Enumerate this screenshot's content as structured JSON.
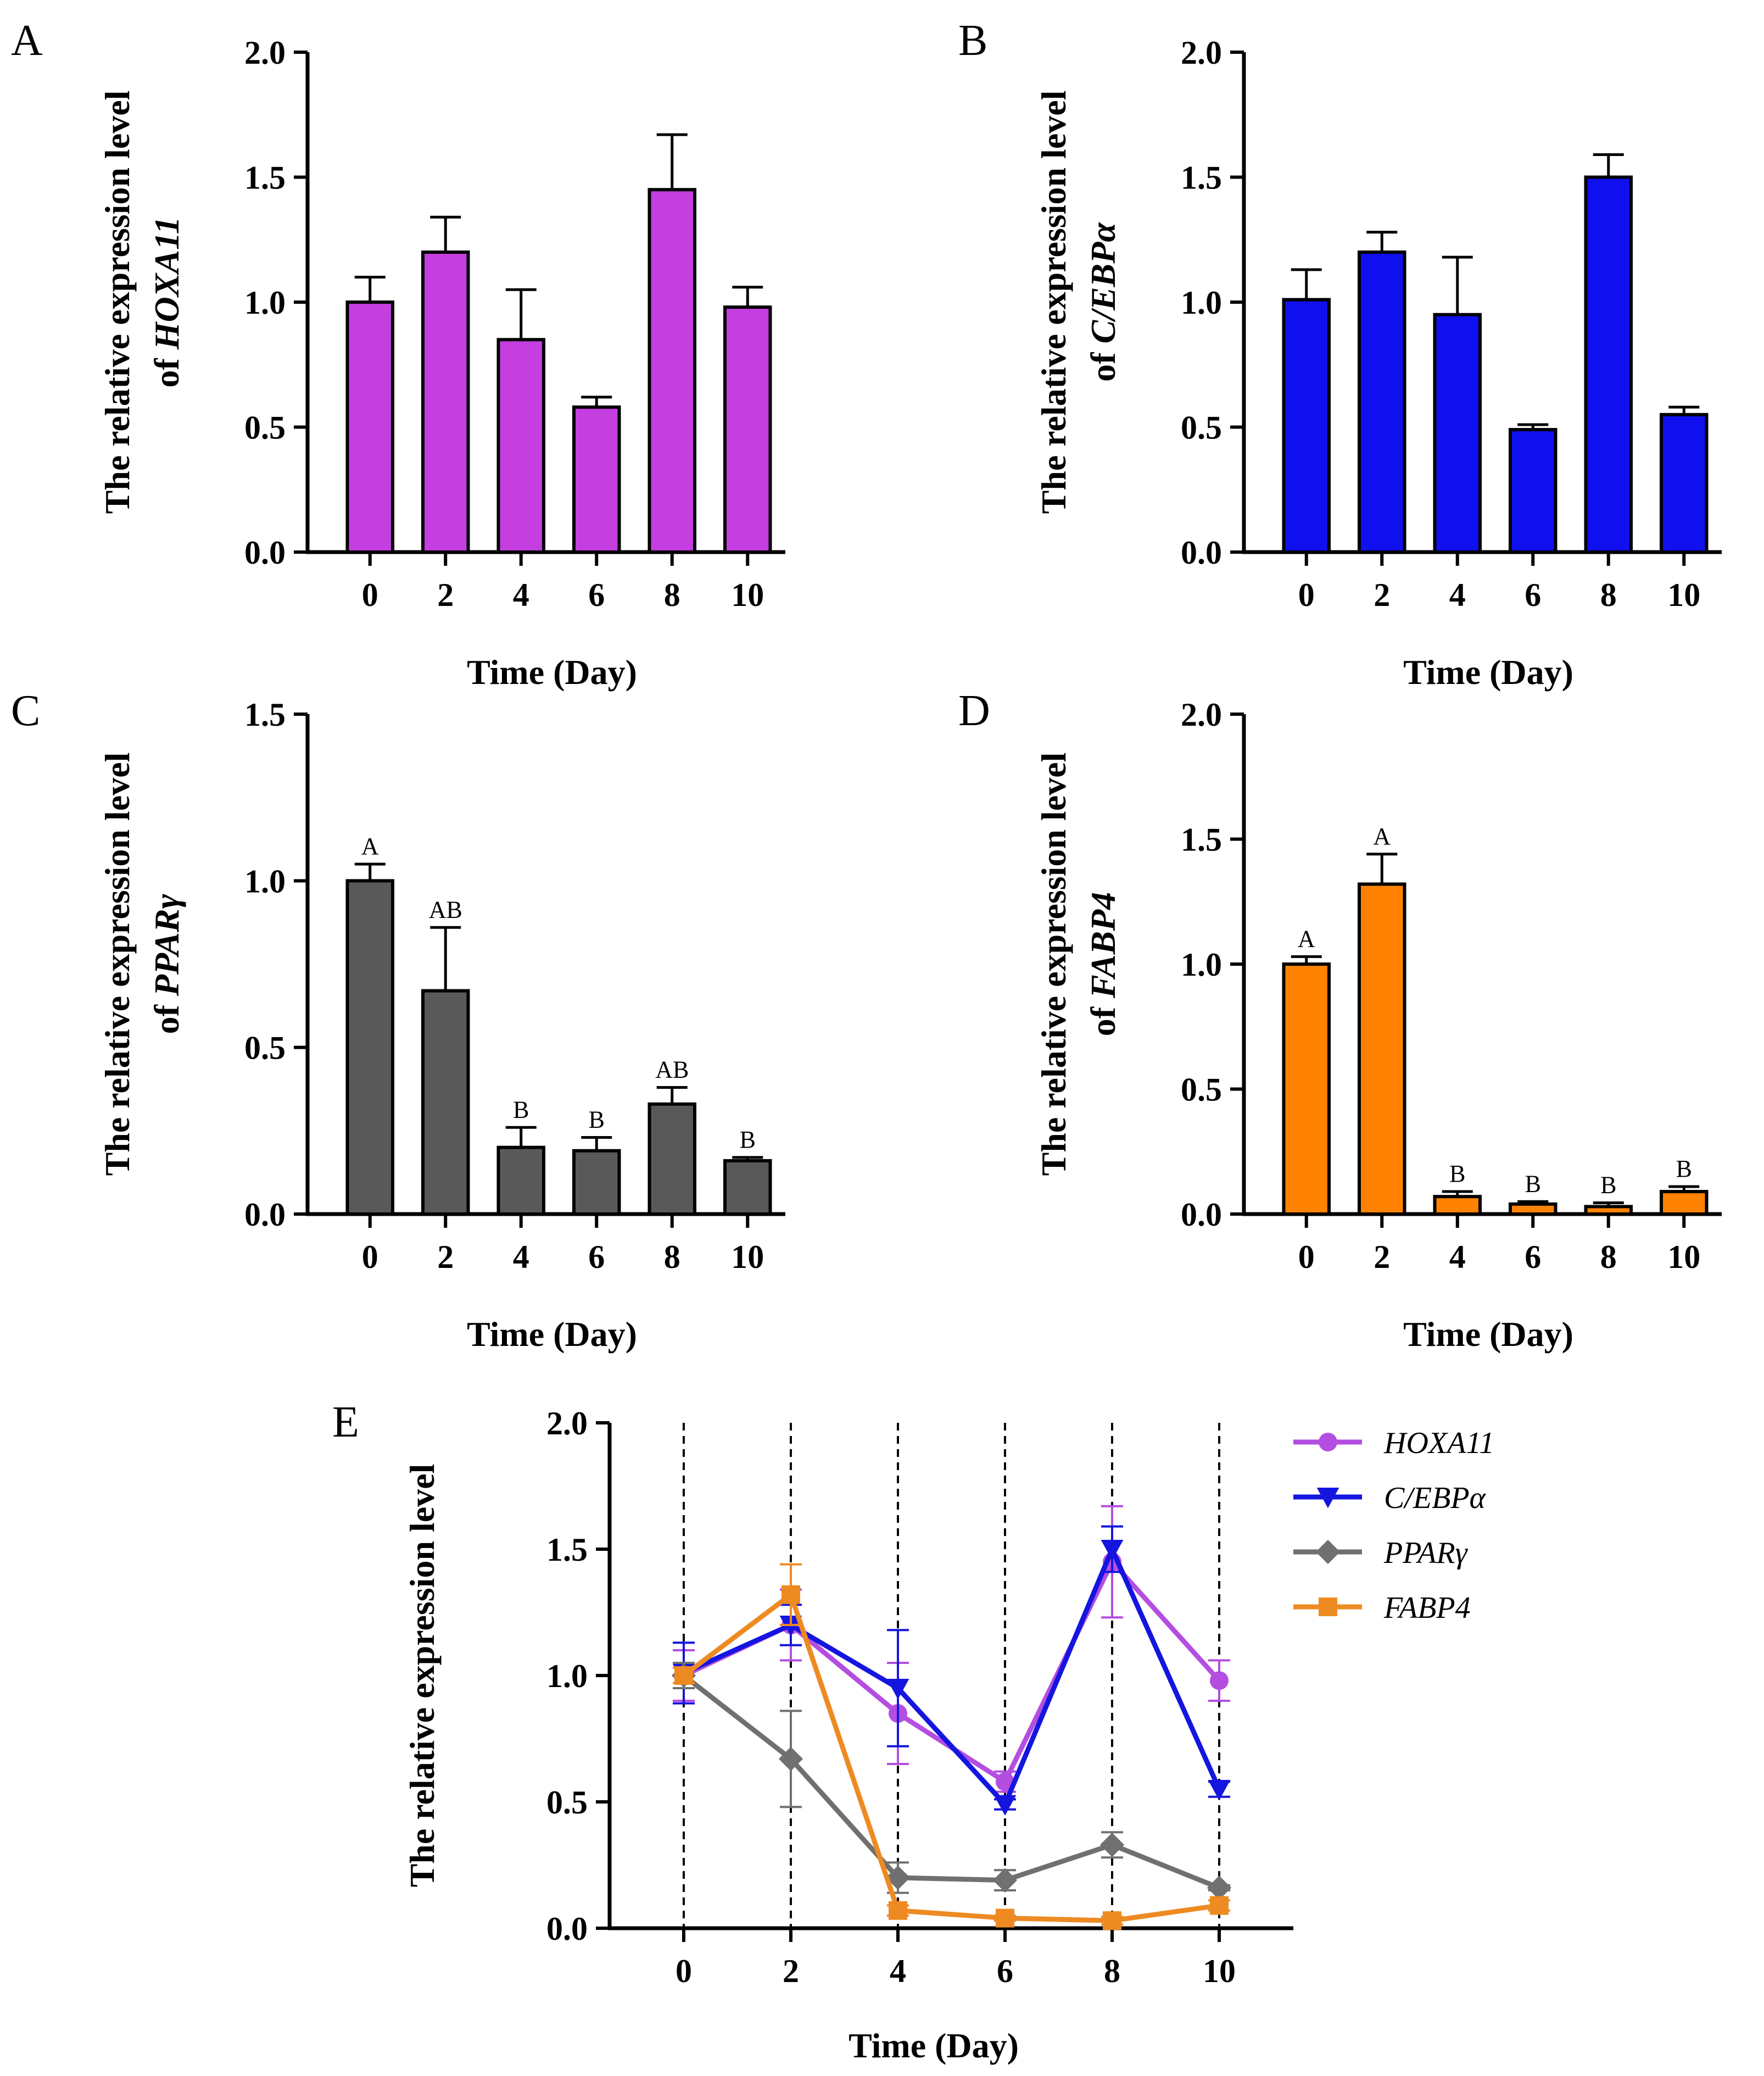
{
  "chart_data": [
    {
      "id": "A",
      "type": "bar",
      "panel_label": "A",
      "gene": "HOXA11",
      "ylabel_line1": "The relative expression level",
      "ylabel_prefix": "of",
      "xlabel": "Time (Day)",
      "categories": [
        "0",
        "2",
        "4",
        "6",
        "8",
        "10"
      ],
      "values": [
        1.0,
        1.2,
        0.85,
        0.58,
        1.45,
        0.98
      ],
      "errors": [
        0.1,
        0.14,
        0.2,
        0.04,
        0.22,
        0.08
      ],
      "significance": [],
      "ylim": [
        0,
        2.0
      ],
      "yticks": [
        "0.0",
        "0.5",
        "1.0",
        "1.5",
        "2.0"
      ],
      "color": "#c43ee0"
    },
    {
      "id": "B",
      "type": "bar",
      "panel_label": "B",
      "gene": "C/EBPα",
      "ylabel_line1": "The relative expression level",
      "ylabel_prefix": "of",
      "xlabel": "Time (Day)",
      "categories": [
        "0",
        "2",
        "4",
        "6",
        "8",
        "10"
      ],
      "values": [
        1.01,
        1.2,
        0.95,
        0.49,
        1.5,
        0.55
      ],
      "errors": [
        0.12,
        0.08,
        0.23,
        0.02,
        0.09,
        0.03
      ],
      "significance": [],
      "ylim": [
        0,
        2.0
      ],
      "yticks": [
        "0.0",
        "0.5",
        "1.0",
        "1.5",
        "2.0"
      ],
      "color": "#1010ee"
    },
    {
      "id": "C",
      "type": "bar",
      "panel_label": "C",
      "gene": "PPARγ",
      "ylabel_line1": "The relative expression level",
      "ylabel_prefix": "of",
      "xlabel": "Time (Day)",
      "categories": [
        "0",
        "2",
        "4",
        "6",
        "8",
        "10"
      ],
      "values": [
        1.0,
        0.67,
        0.2,
        0.19,
        0.33,
        0.16
      ],
      "errors": [
        0.05,
        0.19,
        0.06,
        0.04,
        0.05,
        0.01
      ],
      "significance": [
        "A",
        "AB",
        "B",
        "B",
        "AB",
        "B"
      ],
      "ylim": [
        0,
        1.5
      ],
      "yticks": [
        "0.0",
        "0.5",
        "1.0",
        "1.5"
      ],
      "color": "#595959"
    },
    {
      "id": "D",
      "type": "bar",
      "panel_label": "D",
      "gene": "FABP4",
      "ylabel_line1": "The relative expression level",
      "ylabel_prefix": "of",
      "xlabel": "Time (Day)",
      "categories": [
        "0",
        "2",
        "4",
        "6",
        "8",
        "10"
      ],
      "values": [
        1.0,
        1.32,
        0.07,
        0.04,
        0.03,
        0.09
      ],
      "errors": [
        0.03,
        0.12,
        0.02,
        0.01,
        0.015,
        0.02
      ],
      "significance": [
        "A",
        "A",
        "B",
        "B",
        "B",
        "B"
      ],
      "ylim": [
        0,
        2.0
      ],
      "yticks": [
        "0.0",
        "0.5",
        "1.0",
        "1.5",
        "2.0"
      ],
      "color": "#ff8200"
    },
    {
      "id": "E",
      "type": "line",
      "panel_label": "E",
      "ylabel": "The relative expression level",
      "xlabel": "Time (Day)",
      "x": [
        "0",
        "2",
        "4",
        "6",
        "8",
        "10"
      ],
      "ylim": [
        0,
        2.0
      ],
      "yticks": [
        "0.0",
        "0.5",
        "1.0",
        "1.5",
        "2.0"
      ],
      "vertical_gridlines": "dashed at each time point",
      "legend_position": "right",
      "series": [
        {
          "name": "HOXA11",
          "color": "#b44ee0",
          "marker": "circle",
          "values": [
            1.0,
            1.2,
            0.85,
            0.58,
            1.45,
            0.98
          ],
          "errors": [
            0.1,
            0.14,
            0.2,
            0.04,
            0.22,
            0.08
          ]
        },
        {
          "name": "C/EBPα",
          "color": "#1515e0",
          "marker": "triangle-down",
          "values": [
            1.01,
            1.2,
            0.95,
            0.49,
            1.5,
            0.55
          ],
          "errors": [
            0.12,
            0.08,
            0.23,
            0.02,
            0.09,
            0.03
          ]
        },
        {
          "name": "PPARγ",
          "color": "#707070",
          "marker": "diamond",
          "values": [
            1.0,
            0.67,
            0.2,
            0.19,
            0.33,
            0.16
          ],
          "errors": [
            0.05,
            0.19,
            0.06,
            0.04,
            0.05,
            0.01
          ]
        },
        {
          "name": "FABP4",
          "color": "#ee8a22",
          "marker": "square",
          "values": [
            1.0,
            1.32,
            0.07,
            0.04,
            0.03,
            0.09
          ],
          "errors": [
            0.03,
            0.12,
            0.02,
            0.01,
            0.015,
            0.02
          ]
        }
      ]
    }
  ]
}
